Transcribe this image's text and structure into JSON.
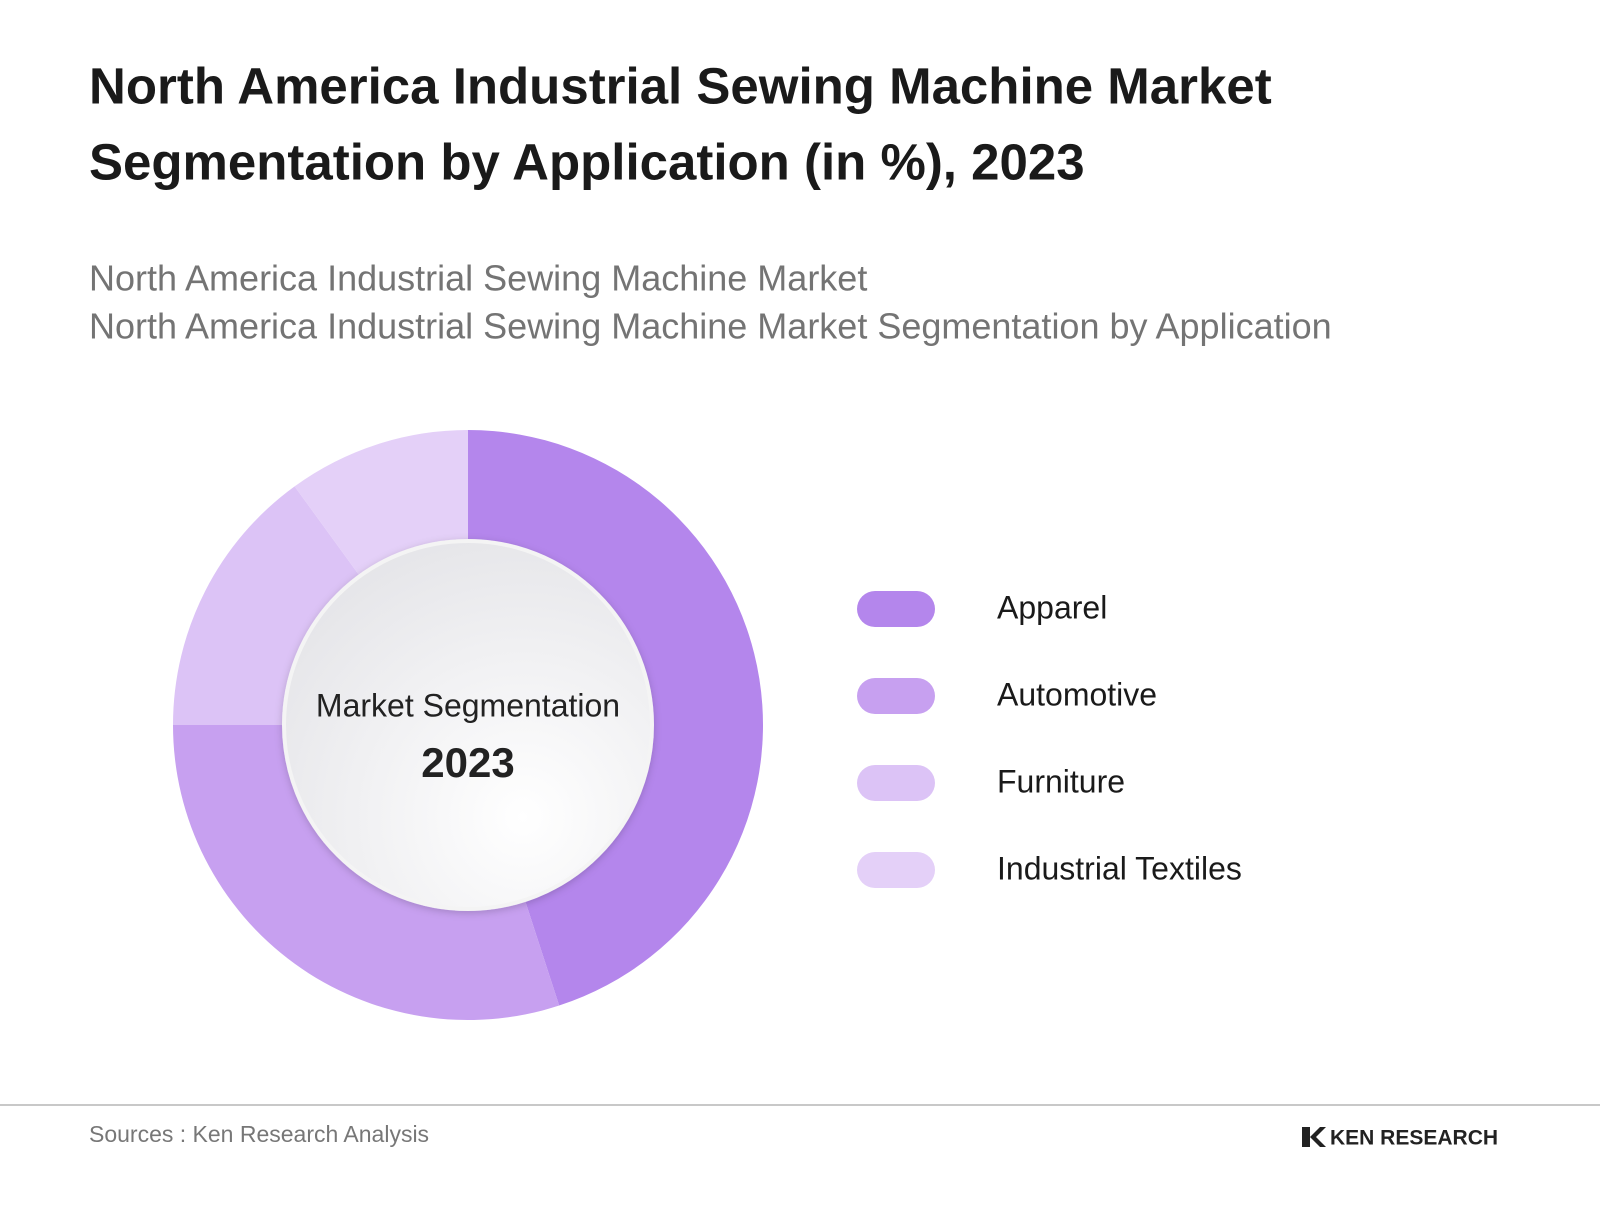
{
  "chart_data": {
    "type": "donut",
    "title": "North America Industrial Sewing Machine Market Segmentation by Application  (in %), 2023",
    "subtitle": [
      "North America Industrial Sewing Machine Market",
      "North America Industrial Sewing Machine Market Segmentation by Application"
    ],
    "center_label": "Market Segmentation",
    "center_year": "2023",
    "categories": [
      "Apparel",
      "Automotive",
      "Furniture",
      "Industrial Textiles"
    ],
    "values": [
      45,
      30,
      15,
      10
    ],
    "colors": [
      "#b486ec",
      "#c7a0f0",
      "#dcc3f6",
      "#e4d0f8"
    ],
    "legend": "right"
  },
  "footer": {
    "source": "Sources : Ken Research Analysis",
    "logo": "KEN RESEARCH"
  }
}
